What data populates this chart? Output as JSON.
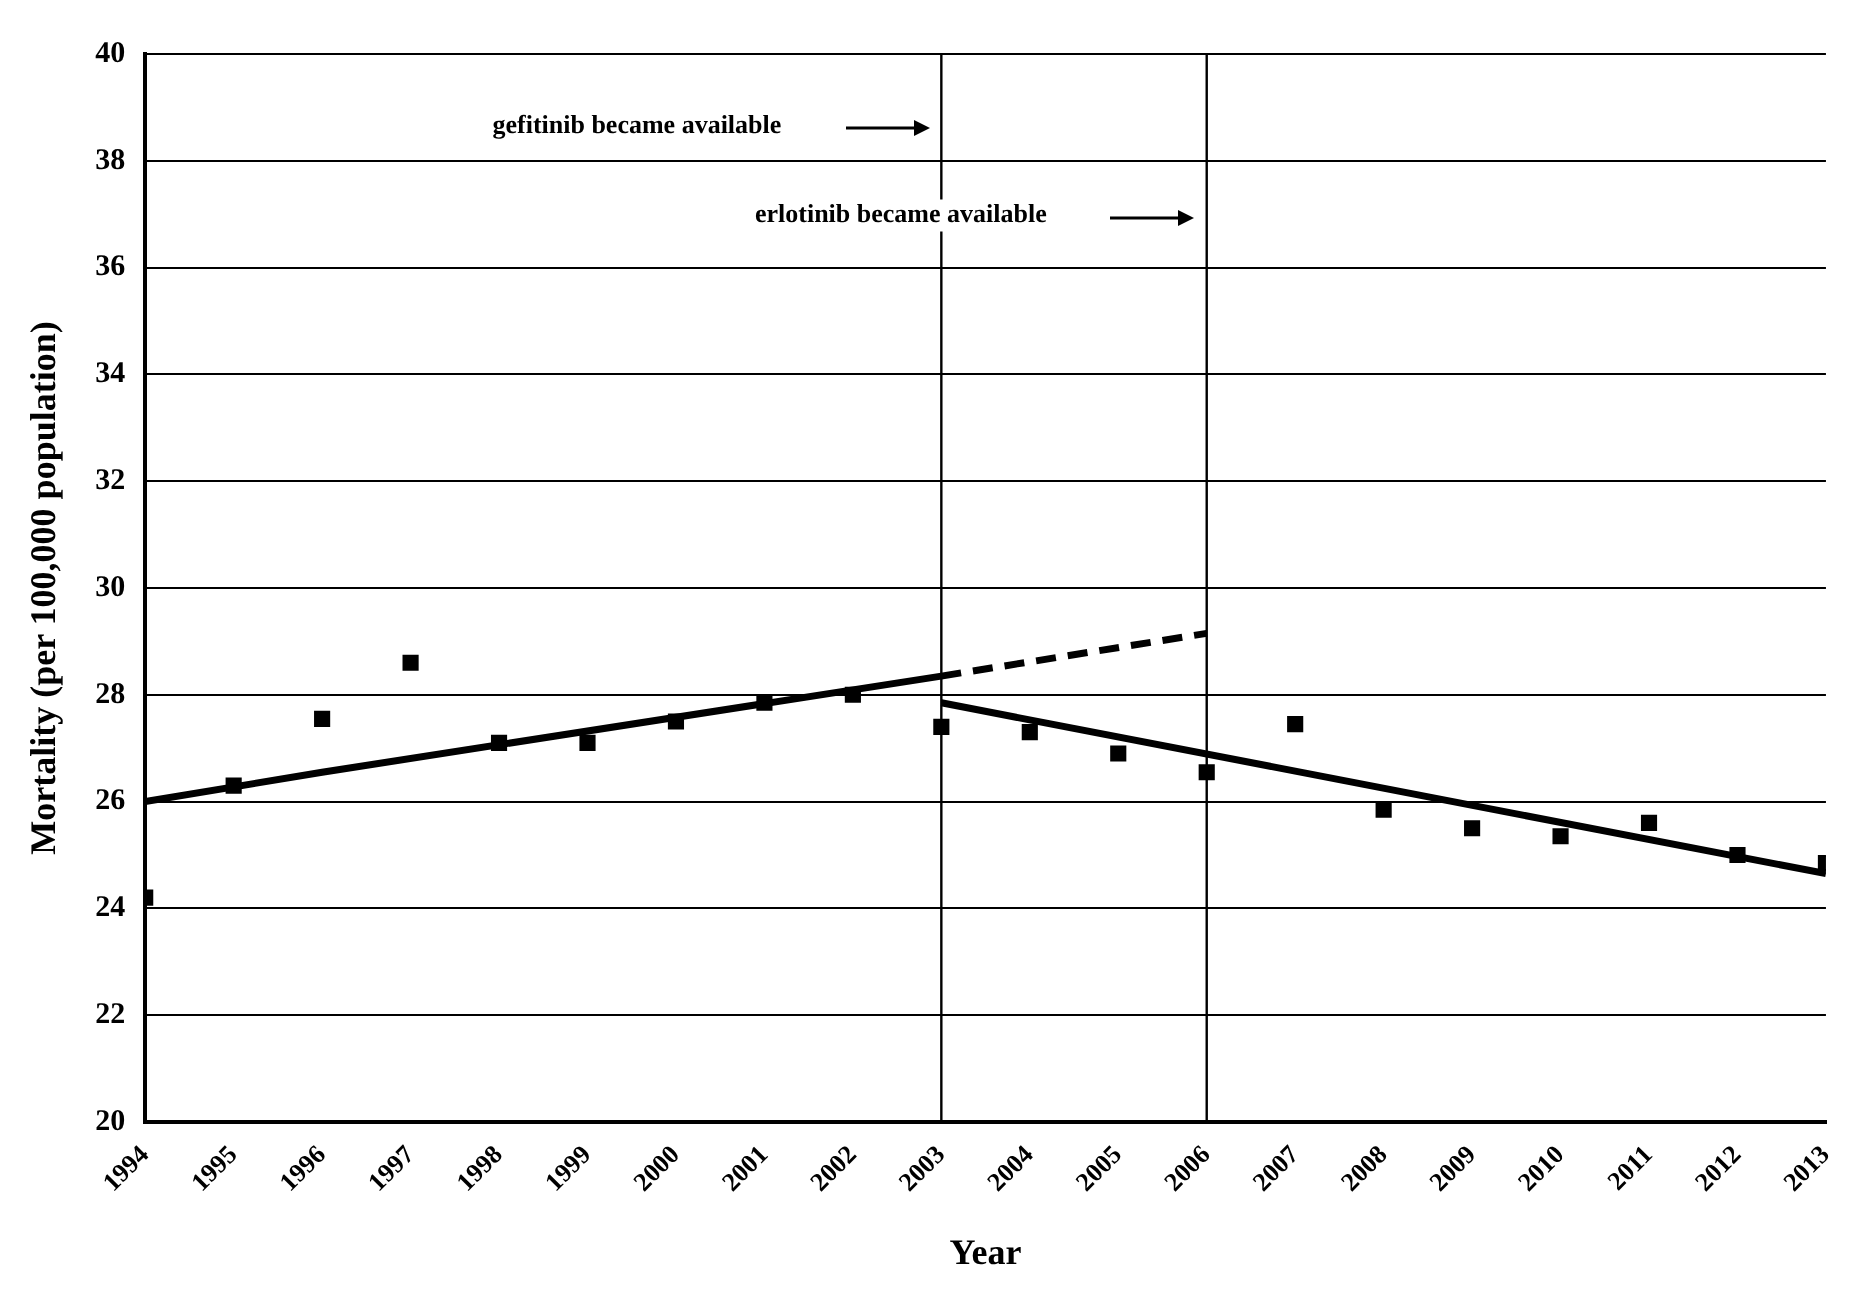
{
  "chart_data": {
    "type": "scatter",
    "xlabel": "Year",
    "ylabel": "Mortality (per 100,000 population)",
    "xlim": [
      1994,
      2013
    ],
    "xticks": [
      1994,
      1995,
      1996,
      1997,
      1998,
      1999,
      2000,
      2001,
      2002,
      2003,
      2004,
      2005,
      2006,
      2007,
      2008,
      2009,
      2010,
      2011,
      2012,
      2013
    ],
    "ylim": [
      20,
      40
    ],
    "yticks": [
      20,
      22,
      24,
      26,
      28,
      30,
      32,
      34,
      36,
      38,
      40
    ],
    "grid": "y",
    "legend": false,
    "series": [
      {
        "type": "scatter",
        "color": "#000000",
        "marker": "square",
        "x": [
          1994,
          1995,
          1996,
          1997,
          1998,
          1999,
          2000,
          2001,
          2002,
          2003,
          2004,
          2005,
          2006,
          2007,
          2008,
          2009,
          2010,
          2011,
          2012,
          2013
        ],
        "values": [
          24.2,
          26.3,
          27.55,
          28.6,
          27.1,
          27.1,
          27.5,
          27.85,
          28.0,
          27.4,
          27.3,
          26.9,
          26.55,
          27.45,
          25.85,
          25.5,
          25.35,
          25.6,
          25.0,
          24.85
        ]
      },
      {
        "type": "line",
        "color": "#000000",
        "marker": "none",
        "line_style": "solid",
        "x": [
          1994,
          1996,
          2003
        ],
        "values": [
          26.0,
          26.55,
          28.35
        ]
      },
      {
        "type": "line",
        "color": "#000000",
        "marker": "none",
        "line_style": "dashed",
        "x": [
          2003,
          2006
        ],
        "values": [
          28.35,
          29.15
        ]
      },
      {
        "type": "line",
        "color": "#000000",
        "marker": "none",
        "line_style": "solid",
        "x": [
          2003,
          2013
        ],
        "values": [
          27.85,
          24.65
        ]
      }
    ],
    "ref_lines": [
      {
        "axis": "x",
        "value": 2003,
        "color": "#000000"
      },
      {
        "axis": "x",
        "value": 2006,
        "color": "#000000"
      }
    ],
    "annotations": [
      "gefitinib became available",
      "erlotinib became available"
    ]
  }
}
